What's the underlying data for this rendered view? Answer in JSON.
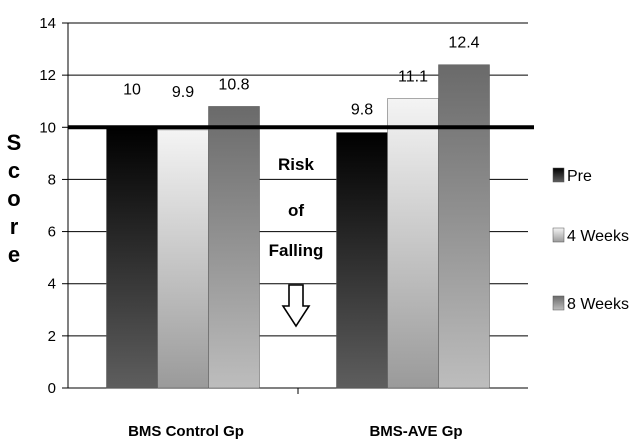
{
  "chart_data": {
    "type": "bar",
    "categories": [
      "BMS Control Gp",
      "BMS-AVE Gp"
    ],
    "series": [
      {
        "name": "Pre",
        "values": [
          10,
          9.8
        ],
        "color": "#2a2a2a"
      },
      {
        "name": "4 Weeks",
        "values": [
          9.9,
          11.1
        ],
        "color": "#e2e2e2"
      },
      {
        "name": "8 Weeks",
        "values": [
          10.8,
          12.4
        ],
        "color": "#8c8c8c"
      }
    ],
    "data_labels": [
      [
        "10",
        "9.8"
      ],
      [
        "9.9",
        "11.1"
      ],
      [
        "10.8",
        "12.4"
      ]
    ],
    "ylabel": "Score",
    "ylim": [
      0,
      14
    ],
    "yticks": [
      0,
      2,
      4,
      6,
      8,
      10,
      12,
      14
    ],
    "reference_line": 10,
    "annotation": [
      "Risk",
      "of",
      "Falling"
    ],
    "grid": true,
    "legend_position": "right"
  }
}
